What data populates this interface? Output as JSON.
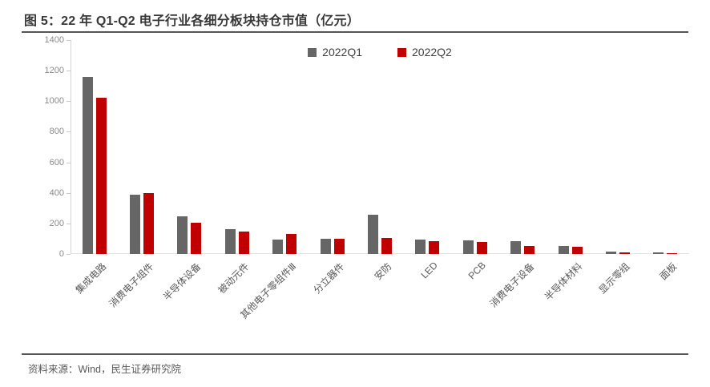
{
  "figure": {
    "title": "图 5：22 年 Q1-Q2 电子行业各细分板块持仓市值（亿元）",
    "source": "资料来源：Wind，民生证券研究院"
  },
  "legend": {
    "items": [
      {
        "label": "2022Q1",
        "color": "#666666"
      },
      {
        "label": "2022Q2",
        "color": "#C00000"
      }
    ]
  },
  "colors": {
    "q1_bar": "#666666",
    "q2_bar": "#C00000",
    "axis_line": "#d3d3d3",
    "tick_text": "#8a8a8a",
    "category_text": "#595959",
    "rule": "#555555",
    "title_text": "#383838"
  },
  "chart_data": {
    "type": "bar",
    "title": "22 年 Q1-Q2 电子行业各细分板块持仓市值（亿元）",
    "xlabel": "",
    "ylabel": "",
    "categories": [
      "集成电路",
      "消费电子组件",
      "半导体设备",
      "被动元件",
      "其他电子零组件Ⅲ",
      "分立器件",
      "安防",
      "LED",
      "PCB",
      "消费电子设备",
      "半导体材料",
      "显示零组",
      "面板"
    ],
    "series": [
      {
        "name": "2022Q1",
        "color": "#666666",
        "values": [
          1160,
          390,
          245,
          160,
          95,
          100,
          255,
          95,
          90,
          85,
          50,
          15,
          8
        ]
      },
      {
        "name": "2022Q2",
        "color": "#C00000",
        "values": [
          1025,
          400,
          205,
          145,
          130,
          100,
          105,
          85,
          80,
          55,
          48,
          8,
          3
        ]
      }
    ],
    "ylim": [
      0,
      1400
    ],
    "yticks": [
      0,
      200,
      400,
      600,
      800,
      1000,
      1200,
      1400
    ],
    "grid": false,
    "legend_position": "top-center"
  }
}
